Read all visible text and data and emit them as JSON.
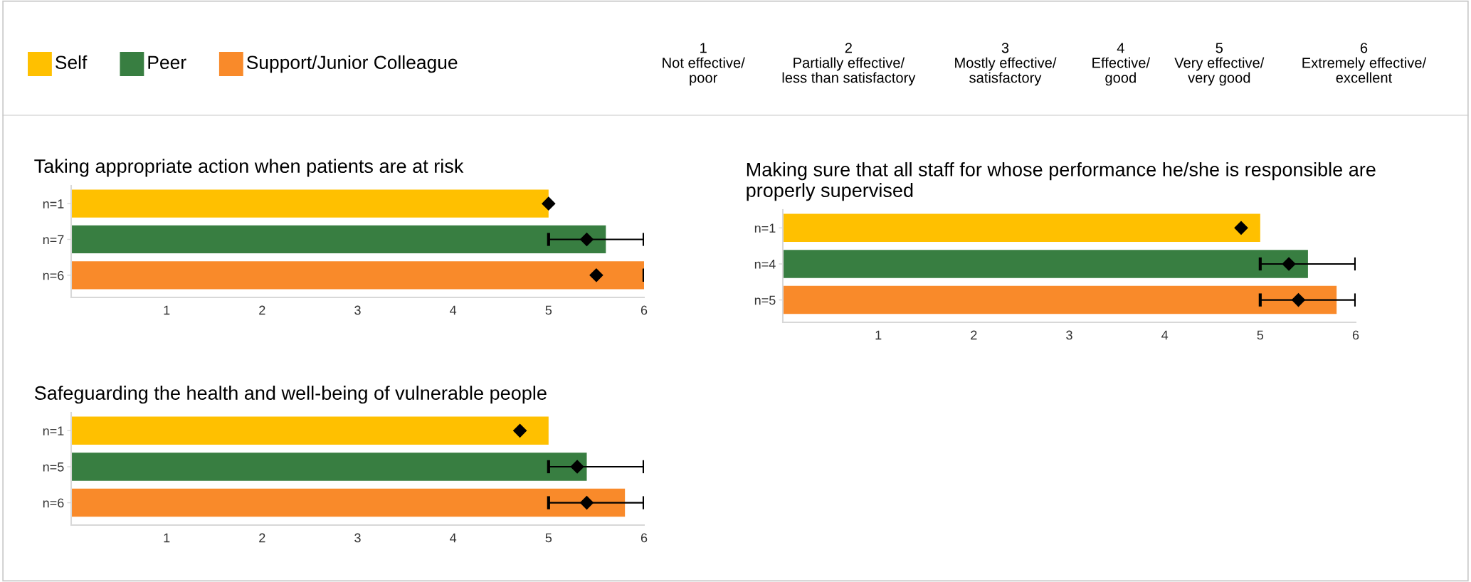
{
  "chart_data": [
    {
      "type": "other",
      "categories": [
        "Self",
        "Peer",
        "Support/Junior Colleague"
      ],
      "colors": [
        "#ffc000",
        "#387e41",
        "#f98a2a"
      ],
      "annotations": [
        "1\nNot effective/\npoor",
        "2\nPartially effective/\nless than satisfactory",
        "3\nMostly effective/\nsatisfactory",
        "4\nEffective/\ngood",
        "5\nVery effective/\nvery good",
        "6\nExtremely effective/\nexcellent"
      ]
    },
    {
      "type": "bar",
      "orientation": "horizontal",
      "title": "Taking appropriate action when patients are at risk",
      "categories": [
        "n=1",
        "n=7",
        "n=6"
      ],
      "xlim": [
        0,
        6
      ],
      "xticks": [
        1,
        2,
        3,
        4,
        5,
        6
      ],
      "grid": false,
      "series": [
        {
          "type": "bar",
          "colors": [
            "#ffc000",
            "#387e41",
            "#f98a2a"
          ],
          "values": [
            5.0,
            5.6,
            6.0
          ]
        },
        {
          "type": "scatter",
          "marker": "diamond",
          "color": "#000000",
          "values": [
            5.0,
            5.4,
            5.5
          ],
          "errors": [
            null,
            [
              5,
              6
            ],
            [
              6,
              6
            ]
          ]
        }
      ]
    },
    {
      "type": "bar",
      "orientation": "horizontal",
      "title": "Making sure that all staff for whose performance he/she is responsible are properly supervised",
      "categories": [
        "n=1",
        "n=4",
        "n=5"
      ],
      "xlim": [
        0,
        6
      ],
      "xticks": [
        1,
        2,
        3,
        4,
        5,
        6
      ],
      "grid": false,
      "series": [
        {
          "type": "bar",
          "colors": [
            "#ffc000",
            "#387e41",
            "#f98a2a"
          ],
          "values": [
            5.0,
            5.5,
            5.8
          ]
        },
        {
          "type": "scatter",
          "marker": "diamond",
          "color": "#000000",
          "values": [
            4.8,
            5.3,
            5.4
          ],
          "errors": [
            null,
            [
              5,
              6
            ],
            [
              5,
              6
            ]
          ]
        }
      ]
    },
    {
      "type": "bar",
      "orientation": "horizontal",
      "title": "Safeguarding the health and well-being of vulnerable people",
      "categories": [
        "n=1",
        "n=5",
        "n=6"
      ],
      "xlim": [
        0,
        6
      ],
      "xticks": [
        1,
        2,
        3,
        4,
        5,
        6
      ],
      "grid": false,
      "series": [
        {
          "type": "bar",
          "colors": [
            "#ffc000",
            "#387e41",
            "#f98a2a"
          ],
          "values": [
            5.0,
            5.4,
            5.8
          ]
        },
        {
          "type": "scatter",
          "marker": "diamond",
          "color": "#000000",
          "values": [
            4.7,
            5.3,
            5.4
          ],
          "errors": [
            null,
            [
              5,
              6
            ],
            [
              5,
              6
            ]
          ]
        }
      ]
    }
  ]
}
